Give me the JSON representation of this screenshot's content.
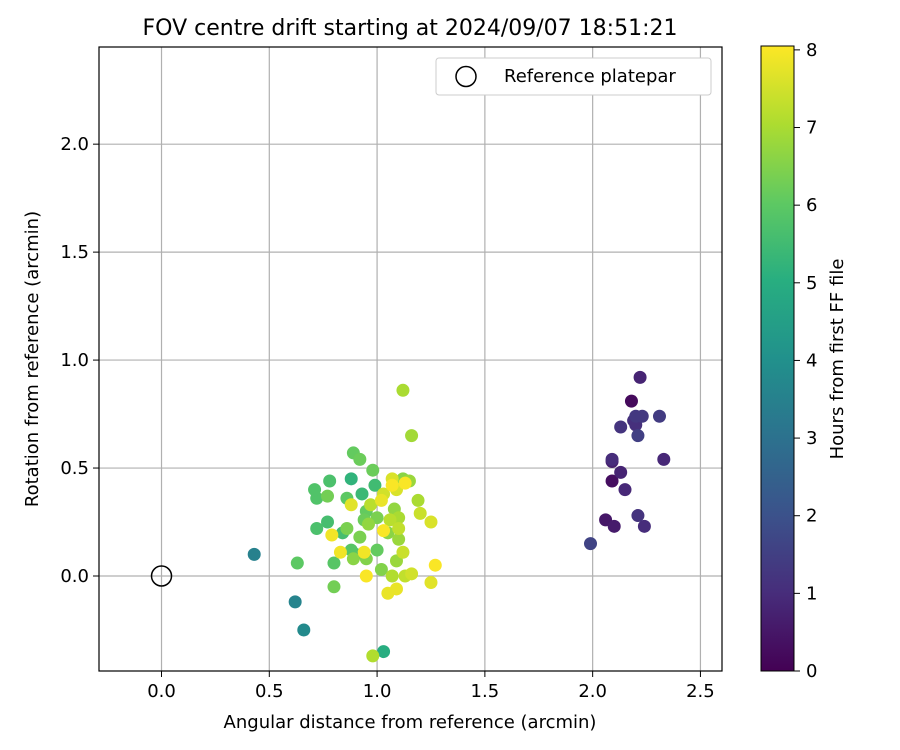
{
  "chart_data": {
    "type": "scatter",
    "title": "FOV centre drift starting at 2024/09/07 18:51:21",
    "xlabel": "Angular distance from reference (arcmin)",
    "ylabel": "Rotation from reference (arcmin)",
    "xlim": [
      -0.29,
      2.6
    ],
    "ylim": [
      -0.44,
      2.45
    ],
    "x_ticks": [
      0.0,
      0.5,
      1.0,
      1.5,
      2.0,
      2.5
    ],
    "x_tick_labels": [
      "0.0",
      "0.5",
      "1.0",
      "1.5",
      "2.0",
      "2.5"
    ],
    "y_ticks": [
      0.0,
      0.5,
      1.0,
      1.5,
      2.0
    ],
    "y_tick_labels": [
      "0.0",
      "0.5",
      "1.0",
      "1.5",
      "2.0"
    ],
    "grid": true,
    "legend": {
      "position": "top-right",
      "entries": [
        "Reference platepar"
      ]
    },
    "reference_point": {
      "x": 0.0,
      "y": 0.0,
      "label": "Reference platepar",
      "marker": "open-circle"
    },
    "colorbar": {
      "label": "Hours from first FF file",
      "colormap": "viridis",
      "range": [
        0,
        8.05
      ],
      "ticks": [
        0,
        1,
        2,
        3,
        4,
        5,
        6,
        7,
        8
      ],
      "tick_labels": [
        "0",
        "1",
        "2",
        "3",
        "4",
        "5",
        "6",
        "7",
        "8"
      ]
    },
    "points": [
      {
        "x": 2.18,
        "y": 0.81,
        "h": 0.2
      },
      {
        "x": 2.09,
        "y": 0.44,
        "h": 0.3
      },
      {
        "x": 2.06,
        "y": 0.26,
        "h": 0.5
      },
      {
        "x": 2.1,
        "y": 0.23,
        "h": 0.6
      },
      {
        "x": 2.09,
        "y": 0.53,
        "h": 0.7
      },
      {
        "x": 2.13,
        "y": 0.48,
        "h": 0.8
      },
      {
        "x": 2.22,
        "y": 0.92,
        "h": 0.8
      },
      {
        "x": 2.15,
        "y": 0.4,
        "h": 0.9
      },
      {
        "x": 2.33,
        "y": 0.54,
        "h": 0.9
      },
      {
        "x": 2.24,
        "y": 0.23,
        "h": 1.0
      },
      {
        "x": 2.09,
        "y": 0.54,
        "h": 1.0
      },
      {
        "x": 2.2,
        "y": 0.7,
        "h": 1.1
      },
      {
        "x": 2.19,
        "y": 0.72,
        "h": 1.1
      },
      {
        "x": 2.21,
        "y": 0.28,
        "h": 1.2
      },
      {
        "x": 2.13,
        "y": 0.69,
        "h": 1.2
      },
      {
        "x": 2.2,
        "y": 0.74,
        "h": 1.3
      },
      {
        "x": 2.23,
        "y": 0.74,
        "h": 1.3
      },
      {
        "x": 2.31,
        "y": 0.74,
        "h": 1.4
      },
      {
        "x": 2.21,
        "y": 0.65,
        "h": 1.5
      },
      {
        "x": 1.99,
        "y": 0.15,
        "h": 1.6
      },
      {
        "x": 0.43,
        "y": 0.1,
        "h": 3.5
      },
      {
        "x": 0.62,
        "y": -0.12,
        "h": 3.6
      },
      {
        "x": 0.66,
        "y": -0.25,
        "h": 3.8
      },
      {
        "x": 1.03,
        "y": -0.35,
        "h": 5.0
      },
      {
        "x": 0.88,
        "y": 0.45,
        "h": 5.2
      },
      {
        "x": 0.9,
        "y": 0.1,
        "h": 5.3
      },
      {
        "x": 0.93,
        "y": 0.38,
        "h": 5.4
      },
      {
        "x": 0.99,
        "y": 0.42,
        "h": 5.5
      },
      {
        "x": 0.84,
        "y": 0.2,
        "h": 5.6
      },
      {
        "x": 0.77,
        "y": 0.25,
        "h": 5.6
      },
      {
        "x": 0.72,
        "y": 0.22,
        "h": 5.7
      },
      {
        "x": 0.78,
        "y": 0.44,
        "h": 5.7
      },
      {
        "x": 0.72,
        "y": 0.36,
        "h": 5.8
      },
      {
        "x": 0.71,
        "y": 0.4,
        "h": 5.8
      },
      {
        "x": 0.8,
        "y": 0.06,
        "h": 5.9
      },
      {
        "x": 0.88,
        "y": 0.12,
        "h": 5.9
      },
      {
        "x": 0.63,
        "y": 0.06,
        "h": 6.0
      },
      {
        "x": 0.86,
        "y": 0.36,
        "h": 6.0
      },
      {
        "x": 0.95,
        "y": 0.3,
        "h": 6.1
      },
      {
        "x": 1.0,
        "y": 0.12,
        "h": 6.1
      },
      {
        "x": 0.89,
        "y": 0.57,
        "h": 6.1
      },
      {
        "x": 0.92,
        "y": 0.54,
        "h": 6.2
      },
      {
        "x": 0.98,
        "y": 0.49,
        "h": 6.2
      },
      {
        "x": 0.94,
        "y": 0.26,
        "h": 6.2
      },
      {
        "x": 0.8,
        "y": -0.05,
        "h": 6.3
      },
      {
        "x": 0.77,
        "y": 0.37,
        "h": 6.3
      },
      {
        "x": 0.86,
        "y": 0.22,
        "h": 6.4
      },
      {
        "x": 0.92,
        "y": 0.18,
        "h": 6.4
      },
      {
        "x": 1.0,
        "y": 0.27,
        "h": 6.4
      },
      {
        "x": 0.95,
        "y": 0.08,
        "h": 6.5
      },
      {
        "x": 1.02,
        "y": 0.03,
        "h": 6.5
      },
      {
        "x": 1.05,
        "y": 0.2,
        "h": 6.6
      },
      {
        "x": 0.89,
        "y": 0.08,
        "h": 6.6
      },
      {
        "x": 1.12,
        "y": 0.45,
        "h": 6.6
      },
      {
        "x": 1.08,
        "y": 0.31,
        "h": 6.7
      },
      {
        "x": 0.96,
        "y": 0.24,
        "h": 6.7
      },
      {
        "x": 1.09,
        "y": 0.07,
        "h": 6.8
      },
      {
        "x": 1.15,
        "y": 0.44,
        "h": 6.8
      },
      {
        "x": 1.1,
        "y": 0.17,
        "h": 6.8
      },
      {
        "x": 1.16,
        "y": 0.65,
        "h": 6.9
      },
      {
        "x": 1.12,
        "y": 0.86,
        "h": 7.0
      },
      {
        "x": 1.19,
        "y": 0.35,
        "h": 7.0
      },
      {
        "x": 1.1,
        "y": 0.27,
        "h": 7.0
      },
      {
        "x": 1.07,
        "y": 0.0,
        "h": 7.1
      },
      {
        "x": 0.98,
        "y": -0.37,
        "h": 7.1
      },
      {
        "x": 1.06,
        "y": 0.26,
        "h": 7.2
      },
      {
        "x": 0.97,
        "y": 0.33,
        "h": 7.2
      },
      {
        "x": 1.1,
        "y": 0.22,
        "h": 7.3
      },
      {
        "x": 1.13,
        "y": 0.0,
        "h": 7.3
      },
      {
        "x": 1.2,
        "y": 0.29,
        "h": 7.4
      },
      {
        "x": 1.12,
        "y": 0.11,
        "h": 7.4
      },
      {
        "x": 1.16,
        "y": 0.01,
        "h": 7.5
      },
      {
        "x": 1.03,
        "y": 0.38,
        "h": 7.5
      },
      {
        "x": 1.07,
        "y": 0.45,
        "h": 7.6
      },
      {
        "x": 1.09,
        "y": 0.4,
        "h": 7.6
      },
      {
        "x": 1.25,
        "y": 0.25,
        "h": 7.6
      },
      {
        "x": 1.25,
        "y": -0.03,
        "h": 7.7
      },
      {
        "x": 0.88,
        "y": 0.33,
        "h": 7.7
      },
      {
        "x": 1.02,
        "y": 0.35,
        "h": 7.8
      },
      {
        "x": 1.09,
        "y": -0.06,
        "h": 7.8
      },
      {
        "x": 1.05,
        "y": -0.08,
        "h": 7.8
      },
      {
        "x": 0.94,
        "y": 0.11,
        "h": 7.9
      },
      {
        "x": 0.79,
        "y": 0.19,
        "h": 7.9
      },
      {
        "x": 0.83,
        "y": 0.11,
        "h": 7.9
      },
      {
        "x": 0.95,
        "y": 0.0,
        "h": 8.0
      },
      {
        "x": 1.03,
        "y": 0.21,
        "h": 8.0
      },
      {
        "x": 1.27,
        "y": 0.05,
        "h": 8.0
      },
      {
        "x": 1.13,
        "y": 0.43,
        "h": 8.0
      },
      {
        "x": 1.07,
        "y": 0.42,
        "h": 8.0
      }
    ]
  }
}
